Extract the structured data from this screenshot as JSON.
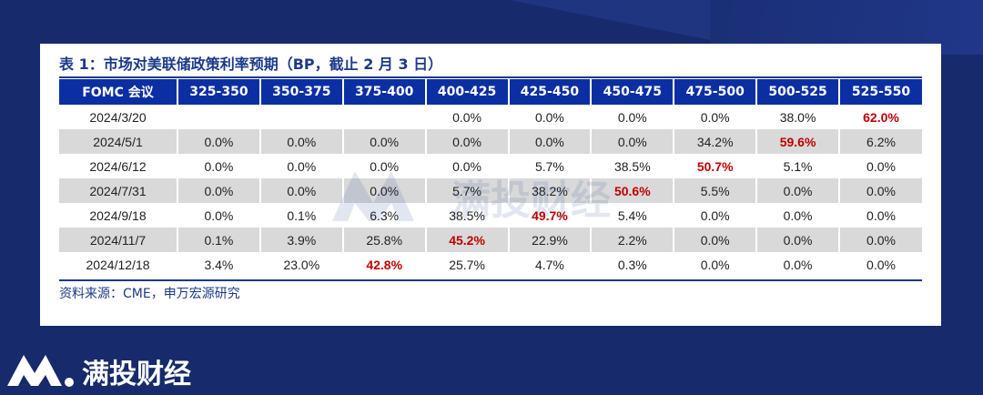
{
  "title": "表 1：市场对美联储政策利率预期（BP，截止 2 月 3 日）",
  "headers": [
    "FOMC 会议",
    "325-350",
    "350-375",
    "375-400",
    "400-425",
    "425-450",
    "450-475",
    "475-500",
    "500-525",
    "525-550"
  ],
  "rows": [
    {
      "date": "2024/3/20",
      "cells": [
        "",
        "",
        "",
        "0.0%",
        "0.0%",
        "0.0%",
        "0.0%",
        "38.0%",
        "62.0%"
      ],
      "highlight": 8
    },
    {
      "date": "2024/5/1",
      "cells": [
        "0.0%",
        "0.0%",
        "0.0%",
        "0.0%",
        "0.0%",
        "0.0%",
        "34.2%",
        "59.6%",
        "6.2%"
      ],
      "highlight": 7
    },
    {
      "date": "2024/6/12",
      "cells": [
        "0.0%",
        "0.0%",
        "0.0%",
        "0.0%",
        "5.7%",
        "38.5%",
        "50.7%",
        "5.1%",
        "0.0%"
      ],
      "highlight": 6
    },
    {
      "date": "2024/7/31",
      "cells": [
        "0.0%",
        "0.0%",
        "0.0%",
        "5.7%",
        "38.2%",
        "50.6%",
        "5.5%",
        "0.0%",
        "0.0%"
      ],
      "highlight": 5
    },
    {
      "date": "2024/9/18",
      "cells": [
        "0.0%",
        "0.1%",
        "6.3%",
        "38.5%",
        "49.7%",
        "5.4%",
        "0.0%",
        "0.0%",
        "0.0%"
      ],
      "highlight": 4
    },
    {
      "date": "2024/11/7",
      "cells": [
        "0.1%",
        "3.9%",
        "25.8%",
        "45.2%",
        "22.9%",
        "2.2%",
        "0.0%",
        "0.0%",
        "0.0%"
      ],
      "highlight": 3
    },
    {
      "date": "2024/12/18",
      "cells": [
        "3.4%",
        "23.0%",
        "42.8%",
        "25.7%",
        "4.7%",
        "0.3%",
        "0.0%",
        "0.0%",
        "0.0%"
      ],
      "highlight": 2
    }
  ],
  "source": "资料来源：CME，申万宏源研究",
  "watermark_text": "满投财经",
  "logo_text": "满投财经",
  "colors": {
    "background": "#172a6b",
    "header": "#0b2fa2",
    "highlight": "#c00000",
    "stripe": "#d9d9d9"
  }
}
